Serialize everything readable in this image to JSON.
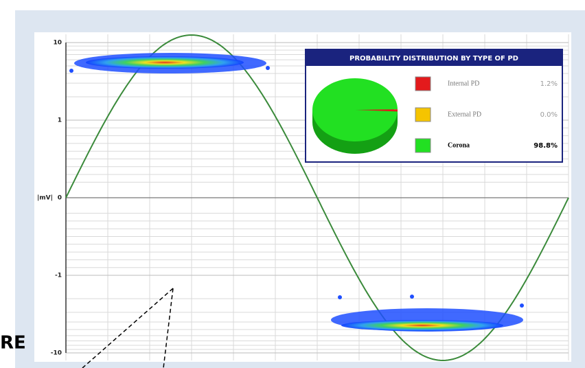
{
  "overlay_text": "RE",
  "chart_data": [
    {
      "type": "prpd",
      "ylabel": "|mV|",
      "scale": "symlog",
      "ylim": [
        -10,
        10
      ],
      "yticks": [
        10,
        1,
        0,
        -1,
        -10
      ],
      "grid": true,
      "line_color": "#3a8a3a"
    },
    {
      "type": "pie",
      "title": "PROBABILITY DISTRIBUTION BY TYPE OF PD",
      "categories": [
        "Internal PD",
        "External PD",
        "Corona"
      ],
      "values": [
        1.2,
        0.0,
        98.8
      ],
      "value_labels": [
        "1.2%",
        "0.0%",
        "98.8%"
      ],
      "colors": [
        "#e31a1c",
        "#f5c400",
        "#22e022"
      ]
    }
  ]
}
